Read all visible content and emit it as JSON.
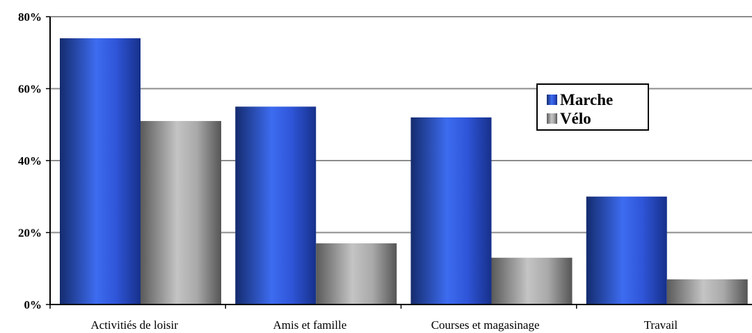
{
  "chart_data": {
    "type": "bar",
    "categories": [
      "Activitiés de loisir",
      "Amis et famille",
      "Courses et magasinage",
      "Travail"
    ],
    "series": [
      {
        "name": "Marche",
        "values": [
          74,
          55,
          52,
          30
        ],
        "color": "#2a4fd6"
      },
      {
        "name": "Vélo",
        "values": [
          51,
          17,
          13,
          7
        ],
        "color": "#a8a8a8"
      }
    ],
    "yticks": [
      "0%",
      "20%",
      "40%",
      "60%",
      "80%"
    ],
    "ylim": [
      0,
      80
    ],
    "grid": true,
    "legend_position": "right",
    "title": "",
    "xlabel": "",
    "ylabel": ""
  }
}
